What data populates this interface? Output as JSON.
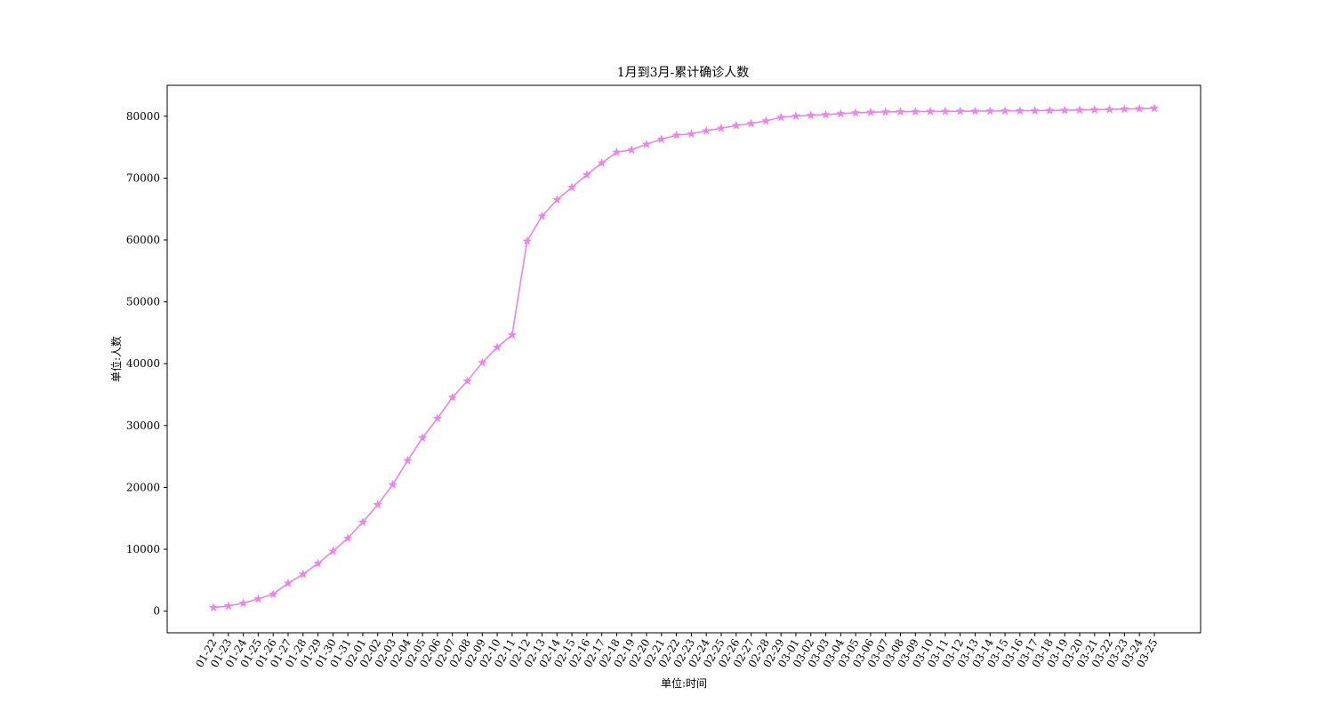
{
  "chart_data": {
    "type": "line",
    "title": "1月到3月-累计确诊人数",
    "xlabel": "单位:时间",
    "ylabel": "单位:人数",
    "ylim": [
      -3500,
      85000
    ],
    "yticks": [
      0,
      10000,
      20000,
      30000,
      40000,
      50000,
      60000,
      70000,
      80000
    ],
    "grid": false,
    "line_color": "#ee82ee",
    "marker": "star",
    "x": [
      "01-22",
      "01-23",
      "01-24",
      "01-25",
      "01-26",
      "01-27",
      "01-28",
      "01-29",
      "01-30",
      "01-31",
      "02-01",
      "02-02",
      "02-03",
      "02-04",
      "02-05",
      "02-06",
      "02-07",
      "02-08",
      "02-09",
      "02-10",
      "02-11",
      "02-12",
      "02-13",
      "02-14",
      "02-15",
      "02-16",
      "02-17",
      "02-18",
      "02-19",
      "02-20",
      "02-21",
      "02-22",
      "02-23",
      "02-24",
      "02-25",
      "02-26",
      "02-27",
      "02-28",
      "02-29",
      "03-01",
      "03-02",
      "03-03",
      "03-04",
      "03-05",
      "03-06",
      "03-07",
      "03-08",
      "03-09",
      "03-10",
      "03-11",
      "03-12",
      "03-13",
      "03-14",
      "03-15",
      "03-16",
      "03-17",
      "03-18",
      "03-19",
      "03-20",
      "03-21",
      "03-22",
      "03-23",
      "03-24",
      "03-25"
    ],
    "values": [
      571,
      830,
      1287,
      1975,
      2744,
      4515,
      5974,
      7711,
      9692,
      11791,
      14380,
      17205,
      20438,
      24324,
      28018,
      31161,
      34546,
      37198,
      40171,
      42638,
      44653,
      59804,
      63851,
      66492,
      68500,
      70548,
      72436,
      74185,
      74576,
      75465,
      76288,
      76936,
      77150,
      77658,
      78064,
      78497,
      78824,
      79251,
      79824,
      80026,
      80151,
      80270,
      80409,
      80552,
      80651,
      80695,
      80735,
      80754,
      80778,
      80793,
      80813,
      80824,
      80844,
      80860,
      80881,
      80894,
      80928,
      80967,
      81008,
      81054,
      81093,
      81171,
      81218,
      81285
    ]
  }
}
